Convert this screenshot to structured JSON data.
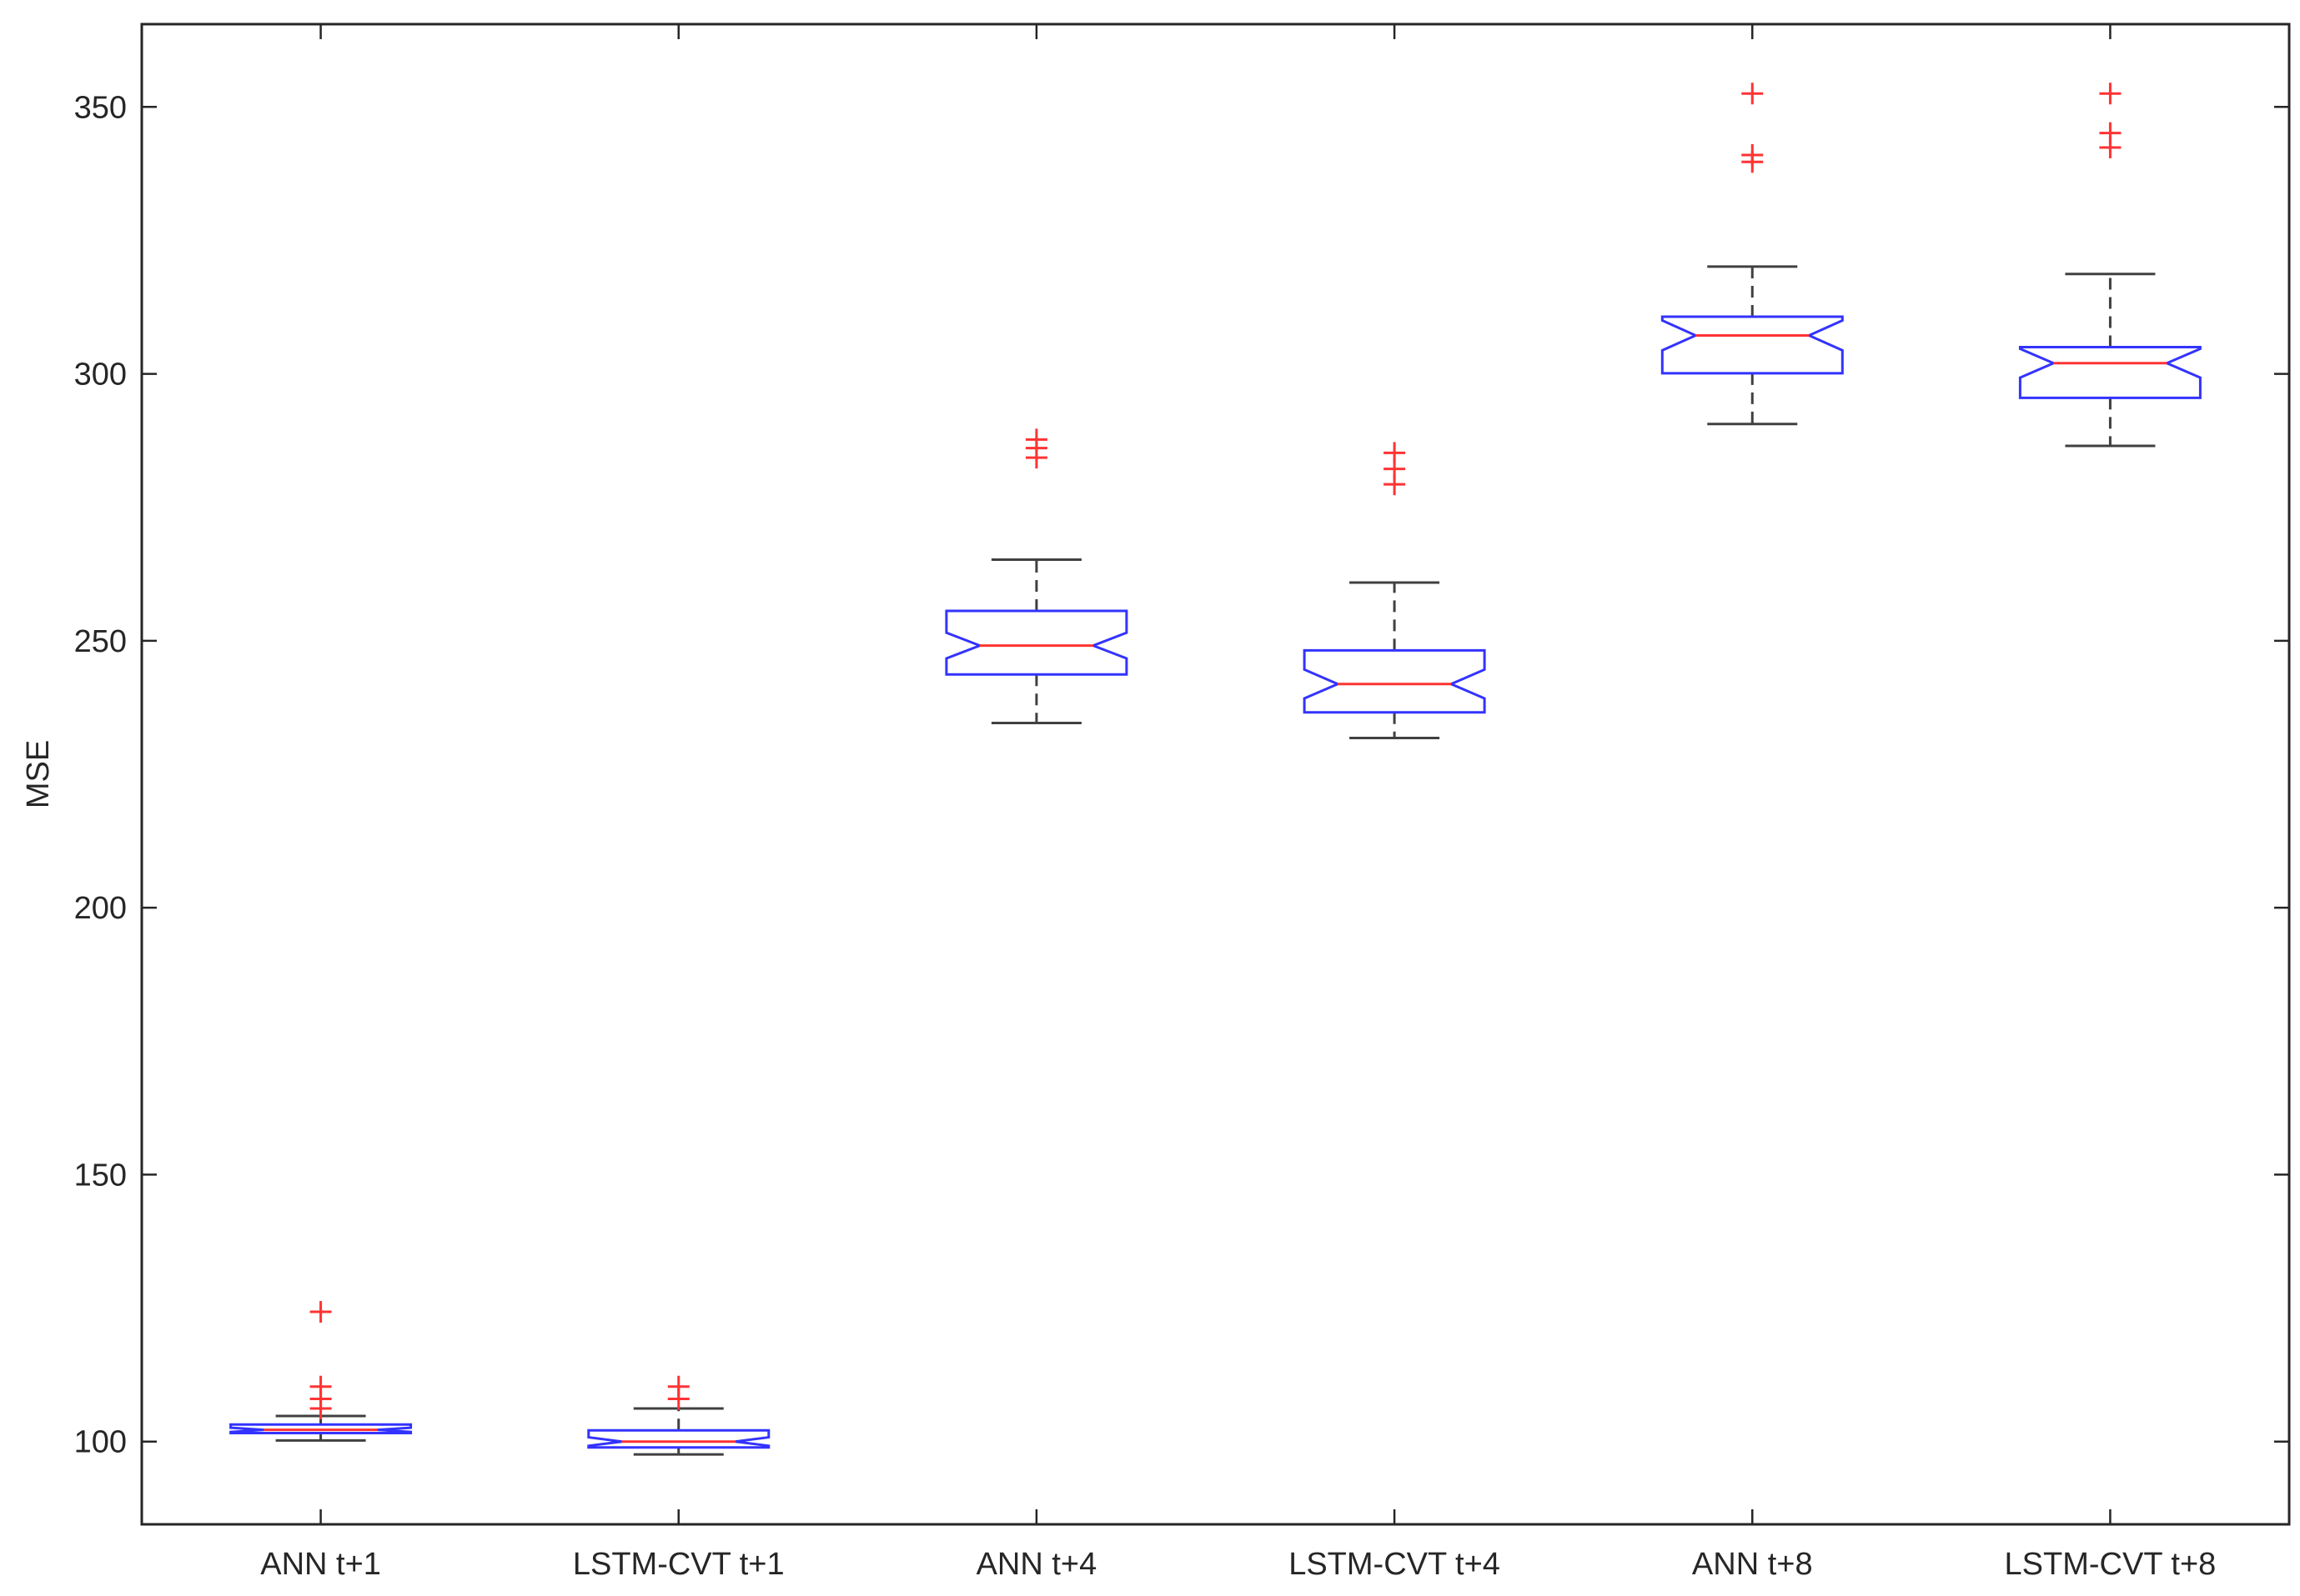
{
  "chart_data": {
    "type": "boxplot",
    "title": "",
    "xlabel": "",
    "ylabel": "MSE",
    "ylim": [
      84.5,
      365.5
    ],
    "yticks": [
      100,
      150,
      200,
      250,
      300,
      350
    ],
    "notched": true,
    "grid": false,
    "categories": [
      "ANN t+1",
      "LSTM-CVT t+1",
      "ANN t+4",
      "LSTM-CVT t+4",
      "ANN t+8",
      "LSTM-CVT t+8"
    ],
    "boxes": [
      {
        "name": "ANN t+1",
        "whisker_low": 100.2,
        "q1": 101.6,
        "median": 102.2,
        "q3": 103.2,
        "whisker_high": 104.8,
        "notch_low": 101.8,
        "notch_high": 102.6,
        "outliers": [
          106.2,
          108.0,
          110.3,
          124.3
        ]
      },
      {
        "name": "LSTM-CVT t+1",
        "whisker_low": 97.6,
        "q1": 98.9,
        "median": 100.0,
        "q3": 102.1,
        "whisker_high": 106.2,
        "notch_low": 99.2,
        "notch_high": 100.8,
        "outliers": [
          108.0,
          110.3
        ]
      },
      {
        "name": "ANN t+4",
        "whisker_low": 234.6,
        "q1": 243.7,
        "median": 249.1,
        "q3": 255.6,
        "whisker_high": 265.2,
        "notch_low": 246.7,
        "notch_high": 251.5,
        "outliers": [
          284.3,
          286.1,
          287.7
        ]
      },
      {
        "name": "LSTM-CVT t+4",
        "whisker_low": 231.8,
        "q1": 236.6,
        "median": 241.9,
        "q3": 248.2,
        "whisker_high": 260.9,
        "notch_low": 239.2,
        "notch_high": 244.6,
        "outliers": [
          279.3,
          282.2,
          285.2
        ]
      },
      {
        "name": "ANN t+8",
        "whisker_low": 290.6,
        "q1": 300.1,
        "median": 307.2,
        "q3": 310.7,
        "whisker_high": 320.1,
        "notch_low": 304.4,
        "notch_high": 310.0,
        "outliers": [
          339.7,
          341.0,
          352.5
        ]
      },
      {
        "name": "LSTM-CVT t+8",
        "whisker_low": 286.5,
        "q1": 295.5,
        "median": 302.0,
        "q3": 305.0,
        "whisker_high": 318.7,
        "notch_low": 299.3,
        "notch_high": 304.7,
        "outliers": [
          342.4,
          345.1,
          352.5
        ]
      }
    ],
    "colors": {
      "box": "#3333ff",
      "median": "#ff3333",
      "outlier": "#ff3333",
      "whisker": "#404040",
      "axis": "#262626"
    }
  }
}
